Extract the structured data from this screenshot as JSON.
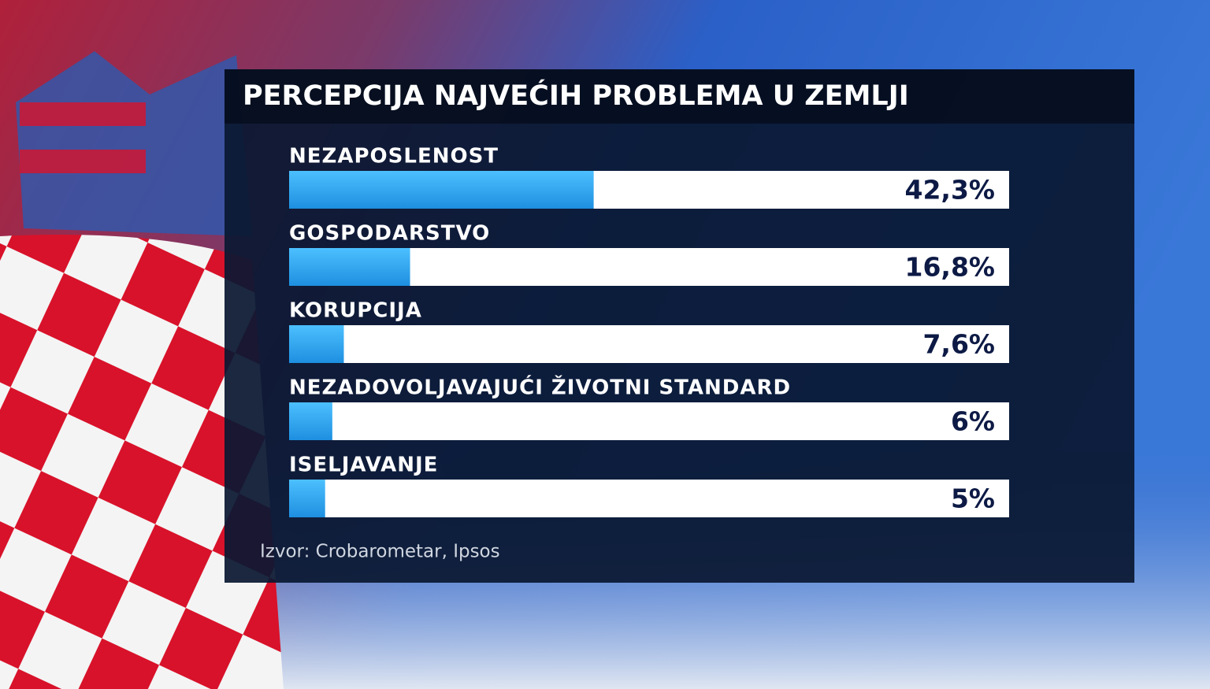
{
  "chart_data": {
    "type": "bar",
    "orientation": "horizontal",
    "title": "PERCEPCIJA NAJVEĆIH PROBLEMA U ZEMLJI",
    "categories": [
      "NEZAPOSLENOST",
      "GOSPODARSTVO",
      "KORUPCIJA",
      "NEZADOVOLJAVAJUĆI ŽIVOTNI STANDARD",
      "ISELJAVANJE"
    ],
    "values": [
      42.3,
      16.8,
      7.6,
      6,
      5
    ],
    "value_labels": [
      "42,3%",
      "16,8%",
      "7,6%",
      "6%",
      "5%"
    ],
    "color": "#2aa6ee",
    "xlim": [
      0,
      100
    ],
    "source": "Izvor: Crobarometar, Ipsos"
  }
}
